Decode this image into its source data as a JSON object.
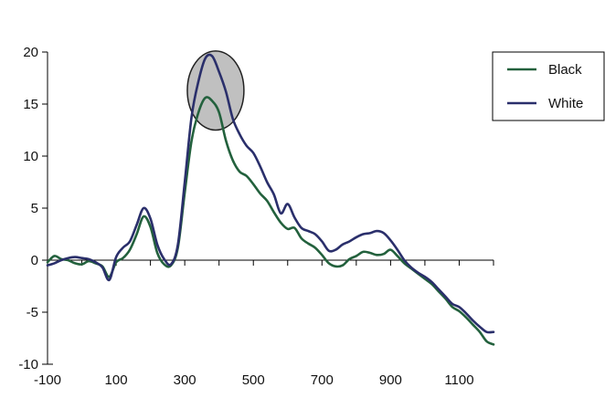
{
  "chart_data": {
    "type": "line",
    "title": "",
    "xlabel": "",
    "ylabel": "",
    "xlim": [
      -100,
      1200
    ],
    "ylim": [
      -10,
      20
    ],
    "x_ticks": [
      -100,
      100,
      300,
      500,
      700,
      900,
      1100
    ],
    "x_tick_labels": [
      "-100",
      "100",
      "300",
      "500",
      "700",
      "900",
      "1100"
    ],
    "x_minor_ticks": [
      0,
      200,
      400,
      600,
      800,
      1000,
      1200
    ],
    "y_ticks": [
      -10,
      -5,
      0,
      5,
      10,
      15,
      20
    ],
    "y_tick_labels": [
      "-10",
      "-5",
      "0",
      "5",
      "10",
      "15",
      "20"
    ],
    "grid": false,
    "legend": {
      "placement": "top-right",
      "entries": [
        "Black",
        "White"
      ]
    },
    "annotations": [
      {
        "type": "ellipse",
        "fill": "#c0c0c0",
        "stroke": "#222222",
        "center": [
          390,
          16.3
        ],
        "rx_data": 165,
        "ry_data": 7.6
      }
    ],
    "series": [
      {
        "name": "Black",
        "color": "#23613d",
        "x": [
          -100,
          -80,
          -60,
          -40,
          -20,
          0,
          20,
          40,
          60,
          80,
          100,
          120,
          140,
          160,
          180,
          200,
          220,
          240,
          260,
          280,
          300,
          320,
          340,
          360,
          380,
          400,
          420,
          440,
          460,
          480,
          500,
          520,
          540,
          560,
          580,
          600,
          620,
          640,
          660,
          680,
          700,
          720,
          740,
          760,
          780,
          800,
          820,
          840,
          860,
          880,
          900,
          920,
          940,
          960,
          980,
          1000,
          1020,
          1040,
          1060,
          1080,
          1100,
          1120,
          1140,
          1160,
          1180,
          1200
        ],
        "y": [
          -0.2,
          0.4,
          0.1,
          0.0,
          -0.3,
          -0.4,
          -0.1,
          -0.3,
          -0.6,
          -1.6,
          -0.2,
          0.2,
          1.0,
          2.5,
          4.2,
          3.2,
          0.7,
          -0.4,
          -0.5,
          1.2,
          6.5,
          11.5,
          14.2,
          15.6,
          15.3,
          14.2,
          11.5,
          9.6,
          8.5,
          8.1,
          7.3,
          6.4,
          5.7,
          4.6,
          3.6,
          3.0,
          3.1,
          2.1,
          1.6,
          1.2,
          0.5,
          -0.3,
          -0.6,
          -0.5,
          0.1,
          0.4,
          0.8,
          0.7,
          0.5,
          0.6,
          1.0,
          0.4,
          -0.3,
          -0.8,
          -1.3,
          -1.8,
          -2.3,
          -3.0,
          -3.7,
          -4.5,
          -4.9,
          -5.5,
          -6.2,
          -6.9,
          -7.8,
          -8.1
        ]
      },
      {
        "name": "White",
        "color": "#2a2f6b",
        "x": [
          -100,
          -80,
          -60,
          -40,
          -20,
          0,
          20,
          40,
          60,
          80,
          100,
          120,
          140,
          160,
          180,
          200,
          220,
          240,
          260,
          280,
          300,
          320,
          340,
          360,
          380,
          400,
          420,
          440,
          460,
          480,
          500,
          520,
          540,
          560,
          580,
          600,
          620,
          640,
          660,
          680,
          700,
          720,
          740,
          760,
          780,
          800,
          820,
          840,
          860,
          880,
          900,
          920,
          940,
          960,
          980,
          1000,
          1020,
          1040,
          1060,
          1080,
          1100,
          1120,
          1140,
          1160,
          1180,
          1200
        ],
        "y": [
          -0.5,
          -0.3,
          0.0,
          0.2,
          0.3,
          0.2,
          0.1,
          -0.2,
          -0.7,
          -1.9,
          0.3,
          1.2,
          1.8,
          3.4,
          5.0,
          4.0,
          1.5,
          0.1,
          -0.4,
          1.5,
          7.5,
          13.8,
          17.2,
          19.4,
          19.6,
          18.1,
          16.2,
          13.6,
          12.1,
          11.0,
          10.3,
          9.0,
          7.5,
          6.3,
          4.5,
          5.4,
          4.1,
          3.1,
          2.8,
          2.5,
          1.8,
          0.9,
          1.0,
          1.5,
          1.8,
          2.2,
          2.5,
          2.6,
          2.8,
          2.6,
          1.9,
          1.0,
          0.0,
          -0.7,
          -1.2,
          -1.6,
          -2.1,
          -2.8,
          -3.5,
          -4.2,
          -4.5,
          -5.1,
          -5.8,
          -6.4,
          -6.9,
          -6.9
        ]
      }
    ]
  }
}
